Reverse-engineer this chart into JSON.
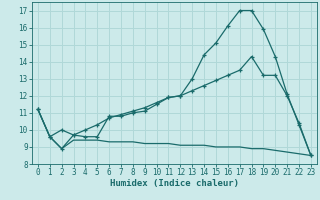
{
  "xlabel": "Humidex (Indice chaleur)",
  "bg_color": "#cceaea",
  "grid_color": "#b0d8d8",
  "line_color": "#1a6b6b",
  "line1_x": [
    0,
    1,
    2,
    3,
    4,
    5,
    6,
    7,
    8,
    9,
    10,
    11,
    12,
    13,
    14,
    15,
    16,
    17,
    18,
    19,
    20,
    21,
    22,
    23
  ],
  "line1_y": [
    11.2,
    9.6,
    8.9,
    9.7,
    9.6,
    9.6,
    10.8,
    10.8,
    11.0,
    11.1,
    11.5,
    11.9,
    12.0,
    13.0,
    14.4,
    15.1,
    16.1,
    17.0,
    17.0,
    15.9,
    14.3,
    12.1,
    10.3,
    8.5
  ],
  "line2_x": [
    0,
    1,
    2,
    3,
    4,
    5,
    6,
    7,
    8,
    9,
    10,
    11,
    12,
    13,
    14,
    15,
    16,
    17,
    18,
    19,
    20,
    21,
    22,
    23
  ],
  "line2_y": [
    11.2,
    9.6,
    10.0,
    9.7,
    10.0,
    10.3,
    10.7,
    10.9,
    11.1,
    11.3,
    11.6,
    11.9,
    12.0,
    12.3,
    12.6,
    12.9,
    13.2,
    13.5,
    14.3,
    13.2,
    13.2,
    12.0,
    10.4,
    8.5
  ],
  "line3_x": [
    0,
    1,
    2,
    3,
    4,
    5,
    6,
    7,
    8,
    9,
    10,
    11,
    12,
    13,
    14,
    15,
    16,
    17,
    18,
    19,
    20,
    21,
    22,
    23
  ],
  "line3_y": [
    11.2,
    9.6,
    8.9,
    9.4,
    9.4,
    9.4,
    9.3,
    9.3,
    9.3,
    9.2,
    9.2,
    9.2,
    9.1,
    9.1,
    9.1,
    9.0,
    9.0,
    9.0,
    8.9,
    8.9,
    8.8,
    8.7,
    8.6,
    8.5
  ],
  "ylim": [
    8,
    17.5
  ],
  "xlim": [
    -0.5,
    23.5
  ],
  "yticks": [
    8,
    9,
    10,
    11,
    12,
    13,
    14,
    15,
    16,
    17
  ],
  "xticks": [
    0,
    1,
    2,
    3,
    4,
    5,
    6,
    7,
    8,
    9,
    10,
    11,
    12,
    13,
    14,
    15,
    16,
    17,
    18,
    19,
    20,
    21,
    22,
    23
  ],
  "tick_fontsize": 5.5,
  "xlabel_fontsize": 6.5,
  "marker": "+"
}
